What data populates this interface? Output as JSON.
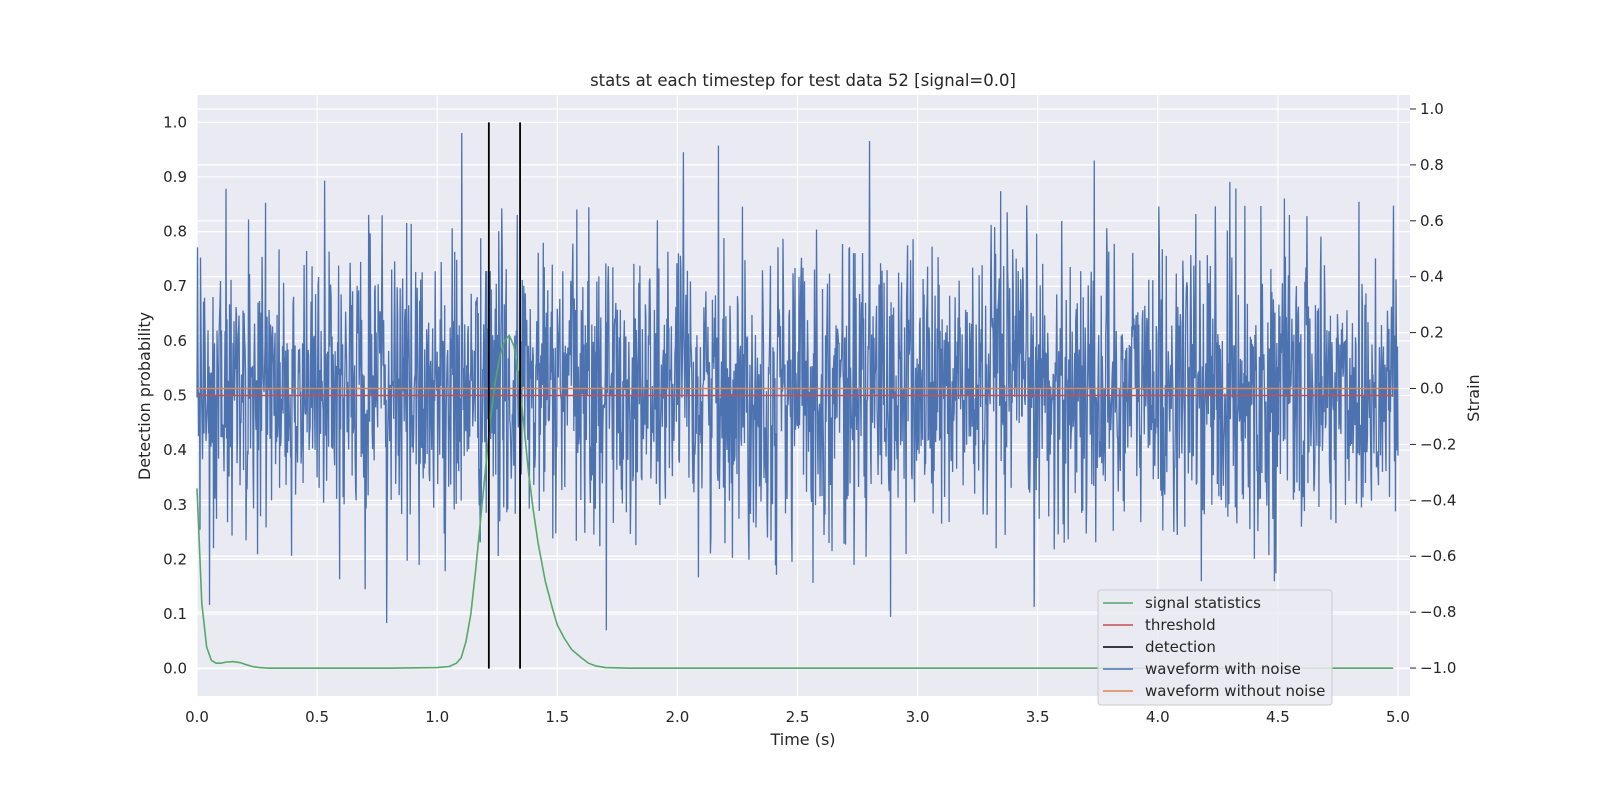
{
  "chart_data": {
    "type": "line",
    "title": "stats at each timestep for test data 52 [signal=0.0]",
    "xlabel": "Time (s)",
    "ylabel": "Detection probability",
    "ylabel_right": "Strain",
    "xlim": [
      0.0,
      5.05
    ],
    "ylim": [
      -0.05,
      1.05
    ],
    "ylim_right": [
      -1.1,
      1.05
    ],
    "grid": true,
    "legend_position": "lower-right",
    "x_ticks": [
      0.0,
      0.5,
      1.0,
      1.5,
      2.0,
      2.5,
      3.0,
      3.5,
      4.0,
      4.5,
      5.0
    ],
    "x_tick_labels": [
      "0.0",
      "0.5",
      "1.0",
      "1.5",
      "2.0",
      "2.5",
      "3.0",
      "3.5",
      "4.0",
      "4.5",
      "5.0"
    ],
    "y_ticks": [
      0.0,
      0.1,
      0.2,
      0.3,
      0.4,
      0.5,
      0.6,
      0.7,
      0.8,
      0.9,
      1.0
    ],
    "y_tick_labels": [
      "0.0",
      "0.1",
      "0.2",
      "0.3",
      "0.4",
      "0.5",
      "0.6",
      "0.7",
      "0.8",
      "0.9",
      "1.0"
    ],
    "y_ticks_right": [
      -1.0,
      -0.8,
      -0.6,
      -0.4,
      -0.2,
      0.0,
      0.2,
      0.4,
      0.6,
      0.8,
      1.0
    ],
    "y_tick_labels_right": [
      "−1.0",
      "−0.8",
      "−0.6",
      "−0.4",
      "−0.2",
      "0.0",
      "0.2",
      "0.4",
      "0.6",
      "0.8",
      "1.0"
    ],
    "series": [
      {
        "name": "signal statistics",
        "color": "#55a868",
        "axis": "left",
        "x": [
          0.0,
          0.02,
          0.04,
          0.06,
          0.08,
          0.1,
          0.12,
          0.15,
          0.18,
          0.2,
          0.23,
          0.26,
          0.3,
          0.4,
          0.6,
          0.8,
          1.0,
          1.05,
          1.08,
          1.1,
          1.12,
          1.14,
          1.16,
          1.18,
          1.2,
          1.22,
          1.24,
          1.26,
          1.28,
          1.3,
          1.32,
          1.34,
          1.36,
          1.38,
          1.4,
          1.42,
          1.45,
          1.48,
          1.5,
          1.53,
          1.56,
          1.6,
          1.63,
          1.66,
          1.7,
          1.8,
          2.0,
          3.0,
          4.0,
          4.98
        ],
        "y": [
          0.33,
          0.12,
          0.04,
          0.015,
          0.01,
          0.01,
          0.012,
          0.013,
          0.011,
          0.008,
          0.004,
          0.002,
          0.001,
          0.001,
          0.001,
          0.001,
          0.002,
          0.004,
          0.01,
          0.02,
          0.05,
          0.1,
          0.18,
          0.27,
          0.36,
          0.45,
          0.52,
          0.57,
          0.6,
          0.61,
          0.59,
          0.53,
          0.45,
          0.36,
          0.29,
          0.23,
          0.16,
          0.11,
          0.08,
          0.055,
          0.035,
          0.02,
          0.01,
          0.005,
          0.002,
          0.001,
          0.001,
          0.001,
          0.001,
          0.001
        ]
      },
      {
        "name": "threshold",
        "color": "#c44e52",
        "axis": "left",
        "x": [
          0.0,
          4.98
        ],
        "y": [
          0.5,
          0.5
        ]
      },
      {
        "name": "detection",
        "color": "#000000",
        "axis": "left",
        "x": [
          1.215,
          1.345
        ],
        "y_range": [
          0.0,
          1.0
        ]
      },
      {
        "name": "waveform with noise",
        "color": "#4c72b0",
        "axis": "right"
      },
      {
        "name": "waveform without noise",
        "color": "#dd8452",
        "axis": "right",
        "x": [
          0.0,
          5.0
        ],
        "y": [
          0.0,
          0.0
        ]
      }
    ]
  }
}
